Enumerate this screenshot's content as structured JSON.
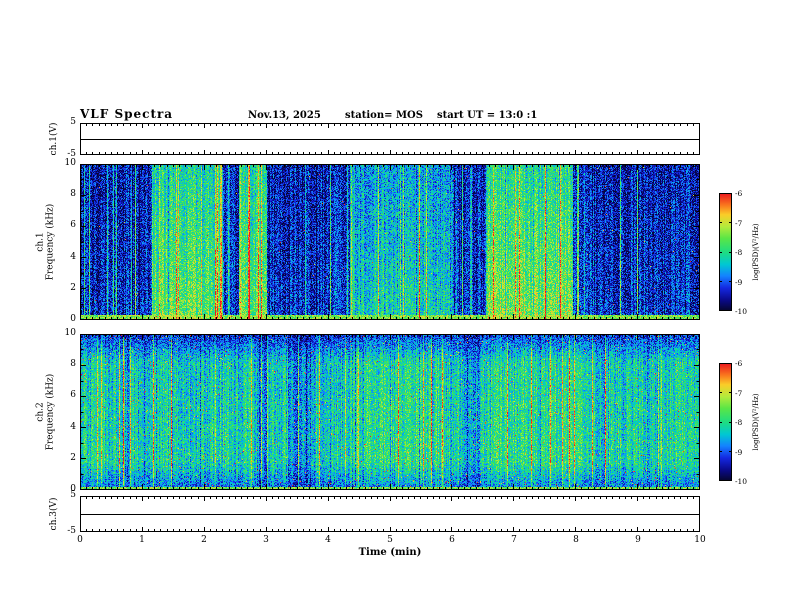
{
  "header": {
    "title": "VLF Spectra",
    "date": "Nov.13, 2025",
    "station": "station= MOS",
    "start_ut": "start UT =  13:0 :1"
  },
  "xaxis": {
    "label": "Time (min)",
    "ticks": [
      0,
      1,
      2,
      3,
      4,
      5,
      6,
      7,
      8,
      9,
      10
    ],
    "range": [
      0,
      10
    ]
  },
  "panels": {
    "ch1v": {
      "label": "ch.1(V)",
      "yticks": [
        5,
        -5
      ],
      "range": [
        -5,
        5
      ]
    },
    "spec1": {
      "channel": "ch.1",
      "ylabel": "Frequency (kHz)",
      "yticks": [
        10,
        8,
        6,
        4,
        2,
        0
      ],
      "range": [
        0,
        10
      ]
    },
    "spec2": {
      "channel": "ch.2",
      "ylabel": "Frequency (kHz)",
      "yticks": [
        10,
        8,
        6,
        4,
        2,
        0
      ],
      "range": [
        0,
        10
      ]
    },
    "ch3v": {
      "label": "ch.3(V)",
      "yticks": [
        5,
        -5
      ],
      "range": [
        -5,
        5
      ]
    }
  },
  "colorbar": {
    "label": "log(PSD)(V²/Hz)",
    "ticks": [
      -6,
      -7,
      -8,
      -9,
      -10
    ],
    "range": [
      -10,
      -6
    ]
  },
  "colors": {
    "background": "#ffffff",
    "frame": "#000000",
    "colormap_low": "#050528",
    "colormap_mid": "#20dc82",
    "colormap_high": "#eb191e"
  },
  "chart_data": [
    {
      "type": "line",
      "name": "ch.1 voltage monitor",
      "ylabel": "ch.1(V)",
      "ylim": [
        -5,
        5
      ],
      "xlim": [
        0,
        10
      ],
      "signal_level_V": 0,
      "description": "flat trace at ~0 V across the full 10 min record"
    },
    {
      "type": "heatmap",
      "name": "ch.1 VLF spectrogram",
      "ylabel": "ch.1 Frequency (kHz)",
      "ylim": [
        0,
        10
      ],
      "xlim": [
        0,
        10
      ],
      "zlabel": "log(PSD)(V²/Hz)",
      "zlim": [
        -10,
        -6
      ],
      "seed": 1337,
      "background_level": 0.2,
      "noise": 0.34,
      "stripe_probability": 0.07,
      "speck_probability": 0.0015,
      "row_drop": 0.25,
      "bottom_band_khz": 0.35,
      "bright_bands": [
        {
          "from": 1.15,
          "to": 2.3,
          "level": 0.62
        },
        {
          "from": 2.55,
          "to": 3.0,
          "level": 0.62
        },
        {
          "from": 4.35,
          "to": 6.0,
          "level": 0.46
        },
        {
          "from": 6.55,
          "to": 7.95,
          "level": 0.65
        }
      ],
      "description": "dark-blue striped impulsive noise background with broad bright green emission bands and sparse red specks; bright narrow band below 0.35 kHz"
    },
    {
      "type": "heatmap",
      "name": "ch.2 VLF spectrogram",
      "ylabel": "ch.2 Frequency (kHz)",
      "ylim": [
        0,
        10
      ],
      "xlim": [
        0,
        10
      ],
      "zlabel": "log(PSD)(V²/Hz)",
      "zlim": [
        -10,
        -6
      ],
      "seed": 4242,
      "background_level": 0.48,
      "noise": 0.32,
      "stripe_probability": 0.05,
      "speck_probability": 0.012,
      "row_drop": 0.1,
      "bottom_band_khz": 0.25,
      "row_top": {
        "start": 8.2,
        "drop": 0.55
      },
      "row_bottom": {
        "end": 1.8,
        "min": 0.55
      },
      "bright_bands": [
        {
          "from": 2.85,
          "to": 3.0,
          "level": 0.33
        },
        {
          "from": 3.35,
          "to": 3.75,
          "level": 0.33
        },
        {
          "from": 6.15,
          "to": 6.45,
          "level": 0.36
        },
        {
          "from": 4.6,
          "to": 5.9,
          "level": 0.54
        },
        {
          "from": 6.6,
          "to": 8.1,
          "level": 0.54
        }
      ],
      "description": "dense cyan-green broadband noise with orange/yellow speckles, darker above 8 kHz and below 1.8 kHz, a few dark column gaps"
    },
    {
      "type": "line",
      "name": "ch.3 voltage monitor",
      "ylabel": "ch.3(V)",
      "ylim": [
        -5,
        5
      ],
      "xlim": [
        0,
        10
      ],
      "signal_level_V": 0,
      "description": "flat trace at ~0 V across the full 10 min record"
    }
  ]
}
